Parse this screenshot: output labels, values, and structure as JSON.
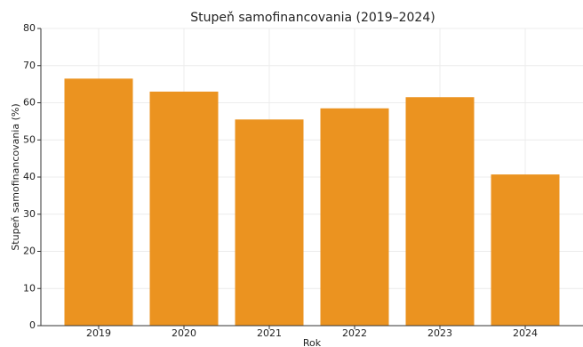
{
  "chart_data": {
    "type": "bar",
    "title": "Stupeň samofinancovania (2019–2024)",
    "x_label": "Rok",
    "y_label": "Stupeň samofinancovania (%)",
    "categories": [
      "2019",
      "2020",
      "2021",
      "2022",
      "2023",
      "2024"
    ],
    "values": [
      66.5,
      63,
      55.5,
      58.5,
      61.5,
      40.7
    ],
    "color": "#eb9320",
    "ylim": [
      0,
      80
    ],
    "yticks": [
      0,
      10,
      20,
      30,
      40,
      50,
      60,
      70,
      80
    ],
    "grid": true
  }
}
